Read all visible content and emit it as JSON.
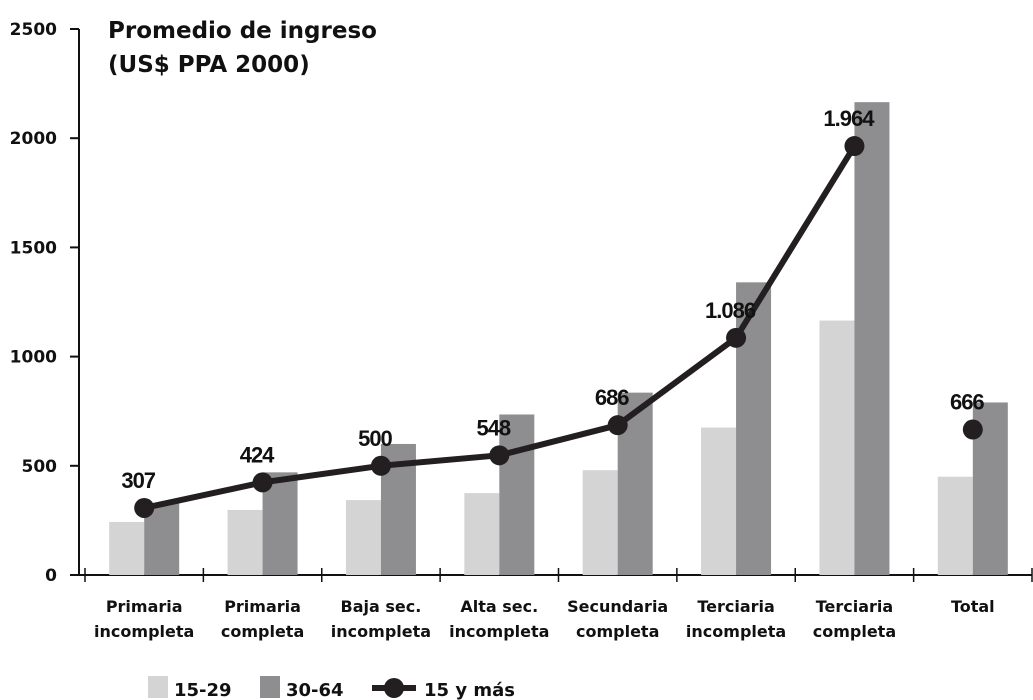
{
  "chart_data": {
    "type": "bar-line",
    "title": [
      "Promedio de ingreso",
      "(US$ PPA 2000)"
    ],
    "categories": [
      [
        "Primaria",
        "incompleta"
      ],
      [
        "Primaria",
        "completa"
      ],
      [
        "Baja sec.",
        "incompleta"
      ],
      [
        "Alta sec.",
        "incompleta"
      ],
      [
        "Secundaria",
        "completa"
      ],
      [
        "Terciaria",
        "incompleta"
      ],
      [
        "Terciaria",
        "completa"
      ],
      [
        "Total"
      ]
    ],
    "series": [
      {
        "name": "15-29",
        "type": "bar",
        "color": "#d4d4d4",
        "values": [
          243,
          298,
          343,
          375,
          480,
          675,
          1165,
          450
        ]
      },
      {
        "name": "30-64",
        "type": "bar",
        "color": "#8e8e90",
        "values": [
          330,
          470,
          600,
          735,
          835,
          1340,
          2165,
          790
        ]
      },
      {
        "name": "15 y más",
        "type": "line",
        "color": "#231f20",
        "values": [
          307,
          424,
          500,
          548,
          686,
          1086,
          1964,
          666
        ],
        "value_labels": [
          "307",
          "424",
          "500",
          "548",
          "686",
          "1.086",
          "1.964",
          "666"
        ]
      }
    ],
    "ylim": [
      0,
      2500
    ],
    "yticks": [
      0,
      500,
      1000,
      1500,
      2000,
      2500
    ]
  }
}
